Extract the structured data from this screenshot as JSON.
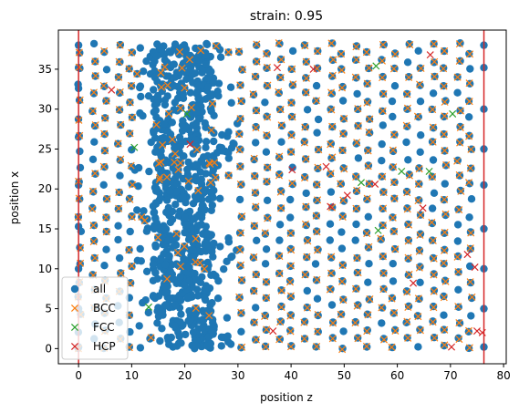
{
  "chart_data": {
    "type": "scatter",
    "title": "strain: 0.95",
    "xlabel": "position z",
    "ylabel": "position x",
    "xlim": [
      -3.8,
      80.5
    ],
    "ylim": [
      -1.9,
      39.9
    ],
    "x_ticks": [
      0,
      10,
      20,
      30,
      40,
      50,
      60,
      70,
      80
    ],
    "y_ticks": [
      0,
      5,
      10,
      15,
      20,
      25,
      30,
      35
    ],
    "grid": false,
    "legend_position": "lower-left",
    "boundary_lines": {
      "color": "#d62728",
      "z": [
        0,
        76.3
      ]
    },
    "series": [
      {
        "name": "all",
        "marker": "circle",
        "color": "#1f77b4",
        "description_values": {
          "z_range": [
            0,
            76.3
          ],
          "x_range": [
            0,
            38.2
          ],
          "dense_band_z": [
            10,
            30
          ]
        }
      },
      {
        "name": "BCC",
        "marker": "x",
        "color": "#ff7f0e"
      },
      {
        "name": "FCC",
        "marker": "x",
        "color": "#2ca02c",
        "points": [
          [
            10.5,
            25.2
          ],
          [
            13.2,
            5.2
          ],
          [
            20.4,
            29.4
          ],
          [
            53.2,
            20.8
          ],
          [
            56.0,
            35.4
          ],
          [
            56.4,
            14.8
          ],
          [
            60.8,
            22.2
          ],
          [
            66.0,
            22.2
          ],
          [
            70.4,
            29.4
          ]
        ]
      },
      {
        "name": "HCP",
        "marker": "x",
        "color": "#d62728",
        "points": [
          [
            6.2,
            32.4
          ],
          [
            21.0,
            25.6
          ],
          [
            37.4,
            35.2
          ],
          [
            40.2,
            22.4
          ],
          [
            44.2,
            35.0
          ],
          [
            46.6,
            22.8
          ],
          [
            47.4,
            17.8
          ],
          [
            50.6,
            19.2
          ],
          [
            55.8,
            20.6
          ],
          [
            63.0,
            8.2
          ],
          [
            64.8,
            17.6
          ],
          [
            66.2,
            36.8
          ],
          [
            36.6,
            2.2
          ],
          [
            70.2,
            0.2
          ],
          [
            73.2,
            11.8
          ],
          [
            74.6,
            10.2
          ],
          [
            75.0,
            2.2
          ],
          [
            76.0,
            2.0
          ]
        ]
      }
    ]
  }
}
